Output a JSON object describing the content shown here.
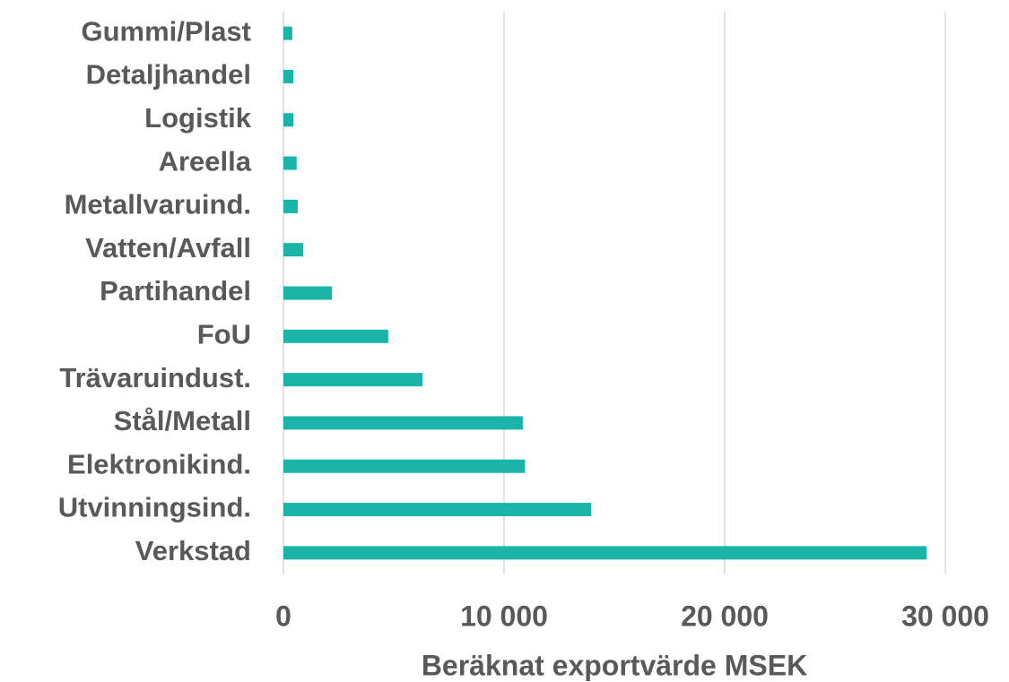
{
  "chart_data": {
    "type": "bar",
    "orientation": "horizontal",
    "categories": [
      "Gummi/Plast",
      "Detaljhandel",
      "Logistik",
      "Areella",
      "Metallvaruind.",
      "Vatten/Avfall",
      "Partihandel",
      "FoU",
      "Trävaruindust.",
      "Stål/Metall",
      "Elektronikind.",
      "Utvinningsind.",
      "Verkstad"
    ],
    "values": [
      400,
      450,
      450,
      600,
      650,
      900,
      2200,
      4750,
      6300,
      10850,
      10950,
      13950,
      29150
    ],
    "color": "#1ab5a8",
    "xlabel": "Beräknat exportvärde MSEK",
    "xlim": [
      0,
      30000
    ],
    "xticks": [
      0,
      {
        "value": 10000,
        "label": "10 000"
      },
      {
        "value": 20000,
        "label": "20 000"
      },
      {
        "value": 30000,
        "label": "30 000"
      }
    ],
    "grid": true
  }
}
